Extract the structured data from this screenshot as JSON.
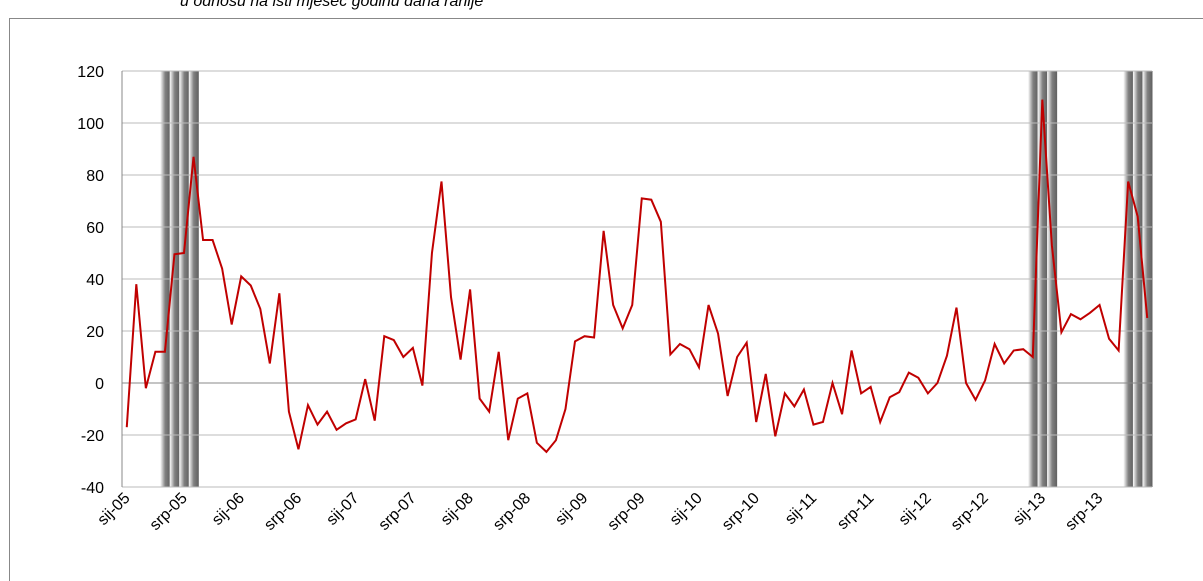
{
  "chart_data": {
    "type": "line",
    "title": "u odnosu na isti mjesec godinu dana ranije",
    "categories": [
      "sij-05",
      null,
      null,
      null,
      null,
      null,
      "srp-05",
      null,
      null,
      null,
      null,
      null,
      "sij-06",
      null,
      null,
      null,
      null,
      null,
      "srp-06",
      null,
      null,
      null,
      null,
      null,
      "sij-07",
      null,
      null,
      null,
      null,
      null,
      "srp-07",
      null,
      null,
      null,
      null,
      null,
      "sij-08",
      null,
      null,
      null,
      null,
      null,
      "srp-08",
      null,
      null,
      null,
      null,
      null,
      "sij-09",
      null,
      null,
      null,
      null,
      null,
      "srp-09",
      null,
      null,
      null,
      null,
      null,
      "sij-10",
      null,
      null,
      null,
      null,
      null,
      "srp-10",
      null,
      null,
      null,
      null,
      null,
      "sij-11",
      null,
      null,
      null,
      null,
      null,
      "srp-11",
      null,
      null,
      null,
      null,
      null,
      "sij-12",
      null,
      null,
      null,
      null,
      null,
      "srp-12",
      null,
      null,
      null,
      null,
      null,
      "sij-13",
      null,
      null,
      null,
      null,
      null,
      "srp-13",
      null,
      null,
      null,
      null,
      null
    ],
    "series": [
      {
        "color": "#c00000",
        "values": [
          -17,
          38,
          -2,
          12,
          12,
          49.5,
          50,
          87,
          55,
          55,
          44,
          22.5,
          41,
          37.5,
          28.5,
          7.5,
          34.5,
          -11,
          -25.5,
          -8.5,
          -16,
          -11,
          -18,
          -15.5,
          -14,
          1.5,
          -14.5,
          18,
          16.5,
          10,
          13.5,
          -1,
          50,
          77.5,
          33,
          9,
          36,
          -6,
          -11,
          12,
          -22,
          -6,
          -4,
          -23,
          -26.5,
          -22,
          -10,
          16,
          18,
          17.5,
          58.5,
          30,
          21,
          30,
          71,
          70.5,
          62,
          11,
          15,
          13,
          6,
          30,
          19,
          -5,
          10,
          15.5,
          -15,
          3.5,
          -20.5,
          -4,
          -9,
          -2.5,
          -16,
          -15,
          0,
          -12,
          12.5,
          -4,
          -1.5,
          -15,
          -5.5,
          -3.5,
          4,
          2,
          -4,
          0,
          10.5,
          29,
          0,
          -6.5,
          1,
          15,
          7.5,
          12.5,
          13,
          10,
          109,
          53,
          19.5,
          26.5,
          24.5,
          27,
          30,
          17,
          12.5,
          77.5,
          64,
          25
        ]
      }
    ],
    "shaded_months": [
      4,
      5,
      6,
      7,
      95,
      96,
      97,
      105,
      106,
      107
    ],
    "shade_color": "#808080",
    "ylim": [
      -40,
      120
    ],
    "yticks": [
      -40,
      -20,
      0,
      20,
      40,
      60,
      80,
      100,
      120
    ],
    "grid": true
  }
}
